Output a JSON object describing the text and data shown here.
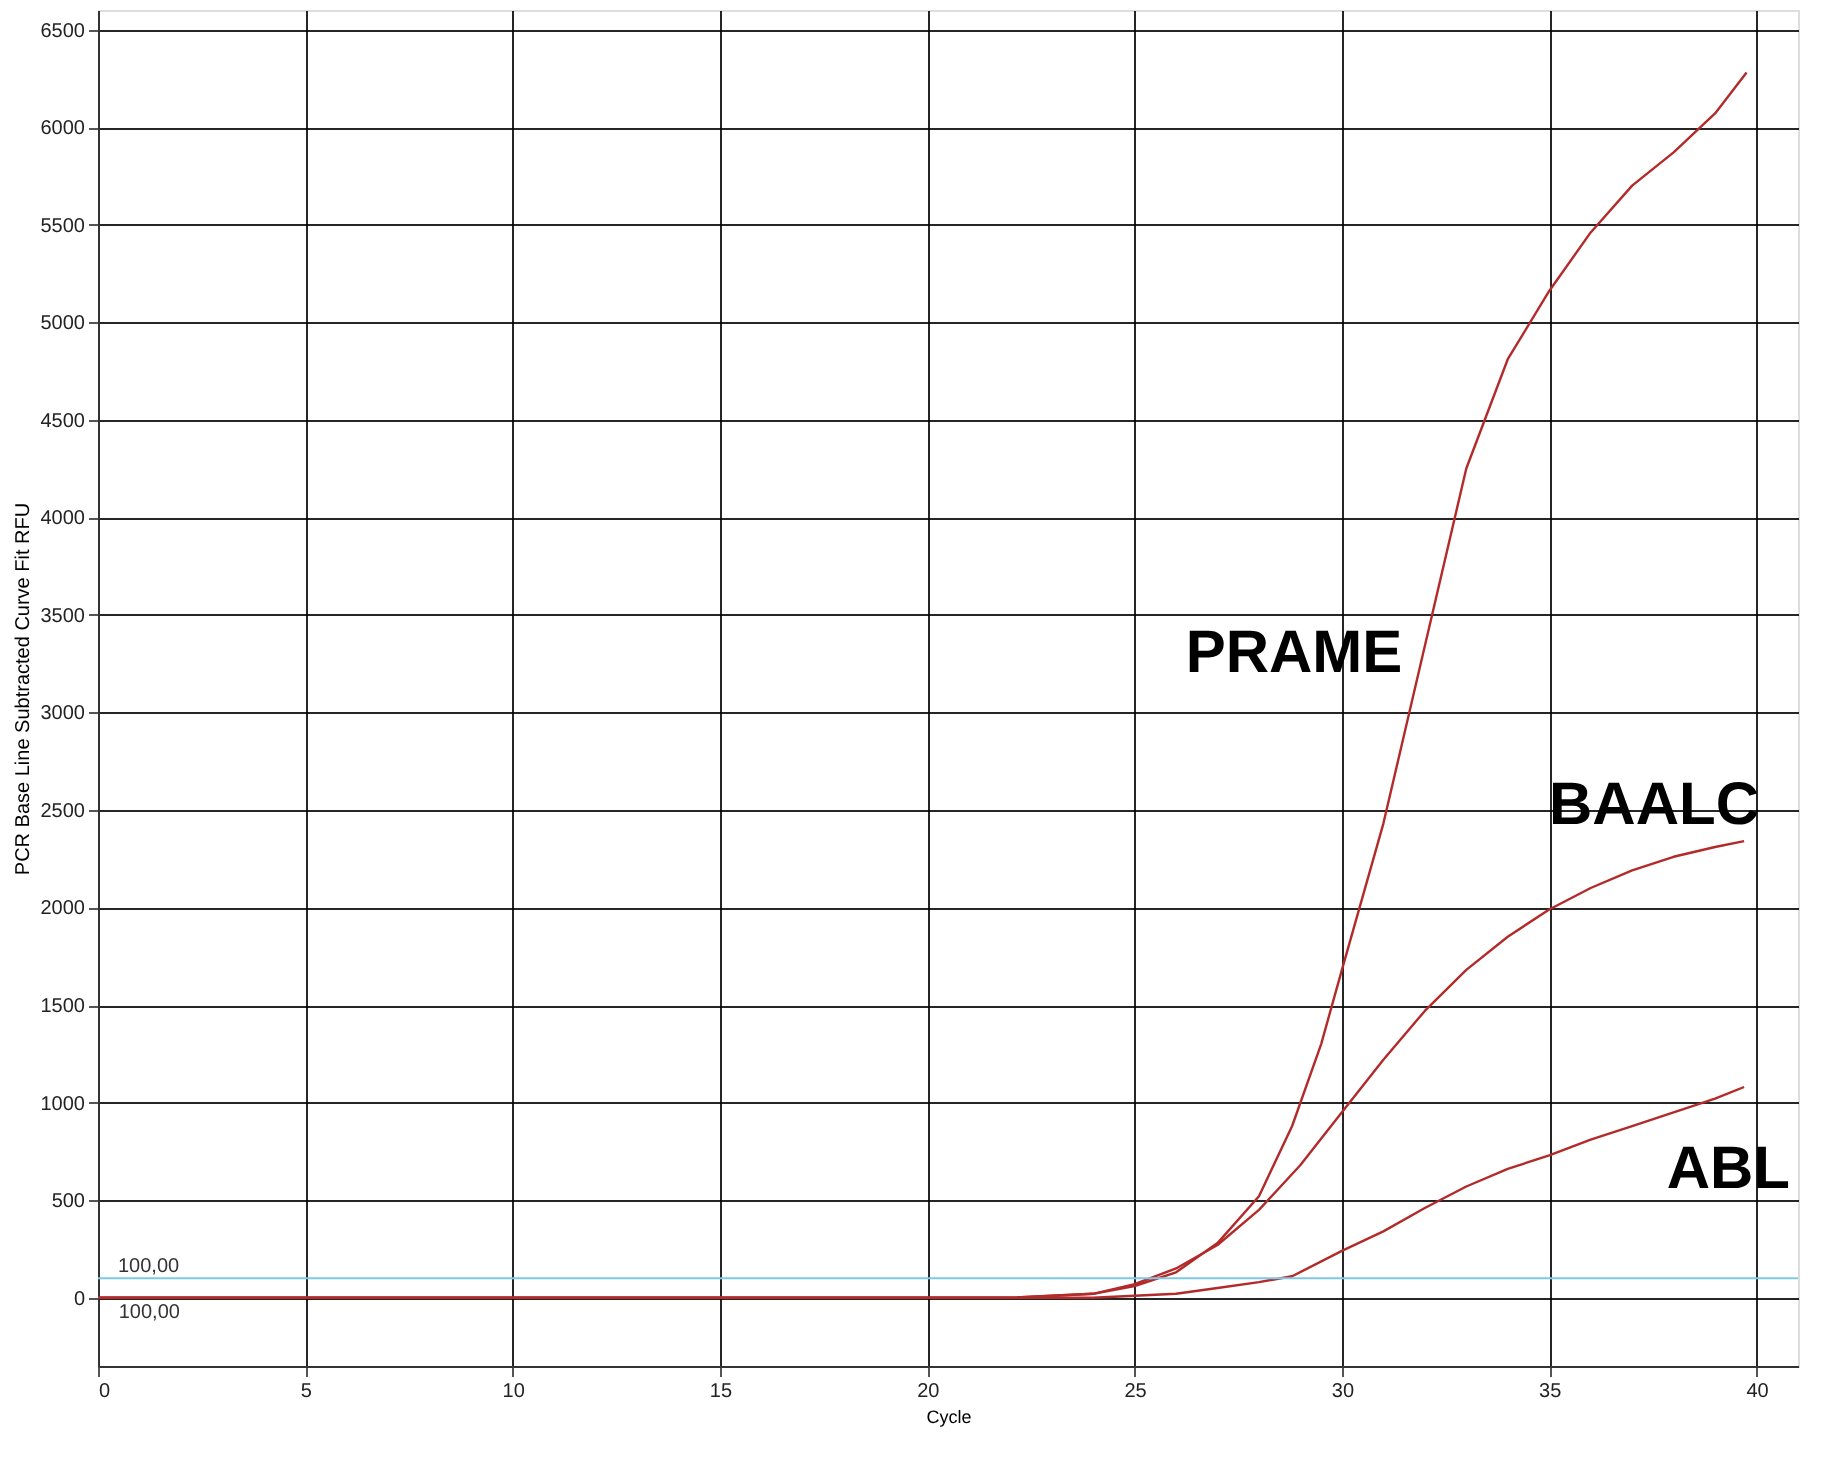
{
  "chart_data": {
    "type": "line",
    "xlabel": "Cycle",
    "ylabel": "PCR Base Line Subtracted Curve Fit RFU",
    "xlim": [
      0,
      41
    ],
    "xticks": [
      0,
      5,
      10,
      15,
      20,
      25,
      30,
      35,
      40
    ],
    "ylim": [
      -350,
      6600
    ],
    "yticks": [
      0,
      500,
      1000,
      1500,
      2000,
      2500,
      3000,
      3500,
      4000,
      4500,
      5000,
      5500,
      6000,
      6500
    ],
    "grid": true,
    "marker": "none",
    "line_style": "solid",
    "ref_lines": [
      {
        "axis": "y",
        "value": 100,
        "label": "100,00",
        "color": "#7ec8e8"
      }
    ],
    "annotations": [
      {
        "text": "100,00",
        "x": 0.5,
        "y": 0
      }
    ],
    "series": [
      {
        "name": "PRAME",
        "color": "#b22a2a",
        "x": [
          0,
          22,
          24,
          25,
          26,
          27,
          28,
          28.8,
          29.5,
          30,
          31,
          32,
          33,
          34,
          35,
          36,
          37,
          38,
          39,
          39.76
        ],
        "values": [
          0,
          0,
          20,
          60,
          130,
          280,
          520,
          880,
          1300,
          1680,
          2430,
          3340,
          4250,
          4810,
          5160,
          5460,
          5700,
          5870,
          6070,
          6280
        ]
      },
      {
        "name": "BAALC",
        "color": "#b22a2a",
        "x": [
          0,
          22,
          24,
          25,
          26,
          27,
          28,
          29,
          30,
          31,
          32,
          33,
          34,
          35,
          36,
          37,
          38,
          39,
          39.7
        ],
        "values": [
          0,
          0,
          20,
          70,
          150,
          270,
          450,
          680,
          950,
          1220,
          1470,
          1680,
          1850,
          1990,
          2100,
          2190,
          2260,
          2310,
          2340
        ]
      },
      {
        "name": "ABL",
        "color": "#b22a2a",
        "x": [
          0,
          22,
          24,
          25,
          26,
          27,
          28,
          28.8,
          30,
          31,
          32,
          33,
          34,
          35,
          36,
          37,
          38,
          39,
          39.7
        ],
        "values": [
          0,
          0,
          0,
          10,
          20,
          50,
          80,
          110,
          240,
          340,
          460,
          570,
          660,
          730,
          810,
          880,
          950,
          1020,
          1080
        ]
      }
    ]
  }
}
